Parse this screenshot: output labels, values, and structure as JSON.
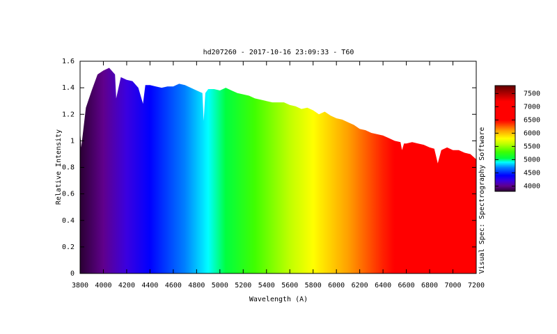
{
  "chart_data": {
    "type": "area",
    "title": "hd207260 - 2017-10-16 23:09:33 - T60",
    "x_label": "Wavelength (A)",
    "y_label": "Relative Intensity",
    "side_label": "Visual Spec: Spectrography Software",
    "x": [
      3800,
      3810,
      3850,
      3900,
      3950,
      4000,
      4050,
      4100,
      4110,
      4150,
      4200,
      4250,
      4300,
      4340,
      4360,
      4400,
      4450,
      4500,
      4550,
      4600,
      4650,
      4700,
      4750,
      4800,
      4850,
      4861,
      4875,
      4900,
      4950,
      5000,
      5050,
      5100,
      5150,
      5200,
      5250,
      5300,
      5350,
      5400,
      5450,
      5500,
      5550,
      5600,
      5650,
      5700,
      5750,
      5800,
      5850,
      5900,
      5950,
      6000,
      6050,
      6100,
      6150,
      6200,
      6250,
      6300,
      6350,
      6400,
      6450,
      6500,
      6550,
      6563,
      6580,
      6600,
      6650,
      6700,
      6750,
      6800,
      6840,
      6870,
      6900,
      6950,
      7000,
      7050,
      7100,
      7150,
      7200
    ],
    "values": [
      1.08,
      0.95,
      1.25,
      1.38,
      1.5,
      1.53,
      1.55,
      1.5,
      1.32,
      1.48,
      1.46,
      1.45,
      1.4,
      1.28,
      1.42,
      1.42,
      1.41,
      1.4,
      1.41,
      1.41,
      1.43,
      1.42,
      1.4,
      1.38,
      1.36,
      1.15,
      1.36,
      1.39,
      1.39,
      1.38,
      1.4,
      1.38,
      1.36,
      1.35,
      1.34,
      1.32,
      1.31,
      1.3,
      1.29,
      1.29,
      1.29,
      1.27,
      1.26,
      1.24,
      1.25,
      1.23,
      1.2,
      1.22,
      1.19,
      1.17,
      1.16,
      1.14,
      1.12,
      1.09,
      1.08,
      1.06,
      1.05,
      1.04,
      1.02,
      1.0,
      0.99,
      0.93,
      0.98,
      0.98,
      0.99,
      0.98,
      0.97,
      0.95,
      0.94,
      0.83,
      0.93,
      0.95,
      0.93,
      0.93,
      0.91,
      0.9,
      0.86
    ],
    "xlim": [
      3800,
      7200
    ],
    "xticks": [
      3800,
      4000,
      4200,
      4400,
      4600,
      4800,
      5000,
      5200,
      5400,
      5600,
      5800,
      6000,
      6200,
      6400,
      6600,
      6800,
      7000,
      7200
    ],
    "ylim": [
      0,
      1.6
    ],
    "yticks": [
      0,
      0.2,
      0.4,
      0.6,
      0.8,
      1,
      1.2,
      1.4,
      1.6
    ],
    "clim": [
      3800,
      7800
    ],
    "cticks": [
      4000,
      4500,
      5000,
      5500,
      6000,
      6500,
      7000,
      7500
    ],
    "colormap": [
      {
        "value": 3800,
        "color": "#2a0033"
      },
      {
        "value": 4000,
        "color": "#60008c"
      },
      {
        "value": 4200,
        "color": "#3a00e0"
      },
      {
        "value": 4400,
        "color": "#0000ff"
      },
      {
        "value": 4700,
        "color": "#0080ff"
      },
      {
        "value": 4900,
        "color": "#00ffff"
      },
      {
        "value": 5050,
        "color": "#00ff40"
      },
      {
        "value": 5300,
        "color": "#40ff00"
      },
      {
        "value": 5600,
        "color": "#c0ff00"
      },
      {
        "value": 5800,
        "color": "#ffff00"
      },
      {
        "value": 6100,
        "color": "#ffa000"
      },
      {
        "value": 6400,
        "color": "#ff2000"
      },
      {
        "value": 6500,
        "color": "#ff0000"
      },
      {
        "value": 7200,
        "color": "#ff0000"
      },
      {
        "value": 7800,
        "color": "#600000"
      }
    ]
  }
}
